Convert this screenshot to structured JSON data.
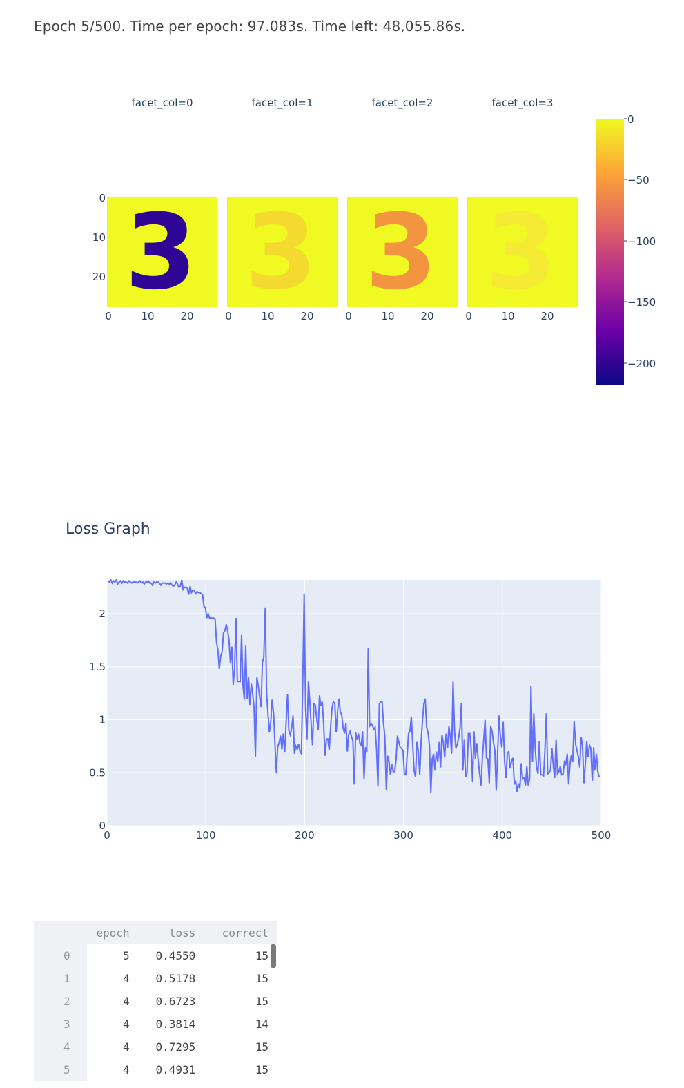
{
  "status_text": "Epoch 5/500. Time per epoch: 97.083s. Time left: 48,055.86s.",
  "facet_chart": {
    "facets": [
      {
        "title": "facet_col=0",
        "digit": "3",
        "color": "#2e0595",
        "opacity": 1.0,
        "style": "solid"
      },
      {
        "title": "facet_col=1",
        "digit": "3",
        "color": "#f7c13a",
        "opacity": 0.55,
        "style": "faint"
      },
      {
        "title": "facet_col=2",
        "digit": "3",
        "color": "#f39440",
        "opacity": 1.0,
        "style": "solid"
      },
      {
        "title": "facet_col=3",
        "digit": "3",
        "color": "#fbd84b",
        "opacity": 0.45,
        "style": "faint"
      }
    ],
    "y_ticks": [
      "0",
      "10",
      "20"
    ],
    "x_ticks": [
      "0",
      "10",
      "20"
    ],
    "background_color": "#f0f921",
    "colorbar": {
      "ticks": [
        "0",
        "−50",
        "−100",
        "−150",
        "−200"
      ],
      "colors": [
        "#0d0887",
        "#6a00a8",
        "#b12a90",
        "#e16462",
        "#fca636",
        "#f0f921"
      ]
    }
  },
  "loss_chart": {
    "title": "Loss Graph",
    "x_ticks": [
      "0",
      "100",
      "200",
      "300",
      "400",
      "500"
    ],
    "y_ticks": [
      "0",
      "0.5",
      "1",
      "1.5",
      "2"
    ],
    "line_color": "#636efa",
    "bg_color": "#e5ecf6"
  },
  "chart_data": {
    "type": "line",
    "title": "Loss Graph",
    "xlim": [
      0,
      500
    ],
    "ylim": [
      0,
      2.32
    ],
    "grid": true,
    "series": [
      {
        "values": [
          2.31,
          2.3,
          2.32,
          2.29,
          2.31,
          2.3,
          2.32,
          2.28,
          2.3,
          2.31,
          2.29,
          2.31,
          2.3,
          2.3,
          2.29,
          2.31,
          2.3,
          2.29,
          2.3,
          2.3,
          2.3,
          2.29,
          2.3,
          2.31,
          2.29,
          2.3,
          2.28,
          2.3,
          2.3,
          2.31,
          2.29,
          2.29,
          2.27,
          2.3,
          2.29,
          2.3,
          2.3,
          2.29,
          2.27,
          2.29,
          2.29,
          2.29,
          2.28,
          2.29,
          2.28,
          2.29,
          2.27,
          2.26,
          2.27,
          2.3,
          2.28,
          2.25,
          2.26,
          2.32,
          2.23,
          2.25,
          2.25,
          2.24,
          2.18,
          2.26,
          2.2,
          2.22,
          2.22,
          2.19,
          2.21,
          2.2,
          2.2,
          2.19,
          2.18,
          2.07,
          2.06,
          1.96,
          2.0,
          1.96,
          1.96,
          1.96,
          1.96,
          1.95,
          1.73,
          1.66,
          1.48,
          1.6,
          1.64,
          1.82,
          1.84,
          1.9,
          1.84,
          1.75,
          1.53,
          1.69,
          1.33,
          1.49,
          1.96,
          1.36,
          1.36,
          1.36,
          1.8,
          1.33,
          1.19,
          1.7,
          1.2,
          1.4,
          1.14,
          1.34,
          1.24,
          1.12,
          0.65,
          1.4,
          1.32,
          1.22,
          1.12,
          1.54,
          1.59,
          2.06,
          1.25,
          1.05,
          0.88,
          0.98,
          1.19,
          1.06,
          0.77,
          0.5,
          0.75,
          0.78,
          0.85,
          0.72,
          0.87,
          0.69,
          0.97,
          1.24,
          0.9,
          0.86,
          0.92,
          1.04,
          0.68,
          0.75,
          0.72,
          0.77,
          0.7,
          0.68,
          1.38,
          2.19,
          1.1,
          0.81,
          1.36,
          1.18,
          0.96,
          0.76,
          1.15,
          1.14,
          1.01,
          0.9,
          1.23,
          1.13,
          1.17,
          0.96,
          0.66,
          0.82,
          0.82,
          0.71,
          0.93,
          1.11,
          1.17,
          1.15,
          0.88,
          1.08,
          1.2,
          1.07,
          1.05,
          0.92,
          0.87,
          0.97,
          0.7,
          0.86,
          0.89,
          0.84,
          0.8,
          0.39,
          0.88,
          0.81,
          0.87,
          0.78,
          0.76,
          0.89,
          0.44,
          0.74,
          0.69,
          1.68,
          0.94,
          0.96,
          0.95,
          0.91,
          0.93,
          0.72,
          0.37,
          1.15,
          1.17,
          1.17,
          0.97,
          0.84,
          0.34,
          0.66,
          0.6,
          0.48,
          0.58,
          0.51,
          0.51,
          0.62,
          0.85,
          0.79,
          0.74,
          0.73,
          0.71,
          0.48,
          0.48,
          0.66,
          0.87,
          0.89,
          1.03,
          0.76,
          0.52,
          0.46,
          0.79,
          0.71,
          0.48,
          0.79,
          0.99,
          1.15,
          1.2,
          0.93,
          0.88,
          0.76,
          0.31,
          0.63,
          0.68,
          0.52,
          0.7,
          0.6,
          0.79,
          0.55,
          0.86,
          0.78,
          0.65,
          0.87,
          0.73,
          0.94,
          0.84,
          0.68,
          1.36,
          0.9,
          0.73,
          0.77,
          0.83,
          0.92,
          1.16,
          0.52,
          0.81,
          0.46,
          0.5,
          0.87,
          0.87,
          0.73,
          0.41,
          0.89,
          0.63,
          0.78,
          0.63,
          0.5,
          0.38,
          0.63,
          0.81,
          1.0,
          0.64,
          0.63,
          0.4,
          0.94,
          0.89,
          0.79,
          0.71,
          0.33,
          0.7,
          1.04,
          0.84,
          0.74,
          0.98,
          0.61,
          0.45,
          0.69,
          0.7,
          0.54,
          0.61,
          0.64,
          0.39,
          0.42,
          0.32,
          0.4,
          0.35,
          0.59,
          0.44,
          0.45,
          0.38,
          0.56,
          0.38,
          0.44,
          1.32,
          0.6,
          1.06,
          0.73,
          0.55,
          0.49,
          0.8,
          0.48,
          0.48,
          0.47,
          0.72,
          1.06,
          0.49,
          0.5,
          0.53,
          0.73,
          0.57,
          0.45,
          0.81,
          0.49,
          0.51,
          0.56,
          0.48,
          0.48,
          0.6,
          0.58,
          0.68,
          0.39,
          0.58,
          0.67,
          0.6,
          0.99,
          0.77,
          0.71,
          0.65,
          0.55,
          0.84,
          0.75,
          0.4,
          0.58,
          0.8,
          0.65,
          0.76,
          0.73,
          0.42,
          0.74,
          0.52,
          0.68,
          0.51,
          0.46
        ]
      }
    ]
  },
  "table": {
    "columns": [
      "epoch",
      "loss",
      "correct"
    ],
    "rows": [
      {
        "index": "0",
        "epoch": "5",
        "loss": "0.4550",
        "correct": "15"
      },
      {
        "index": "1",
        "epoch": "4",
        "loss": "0.5178",
        "correct": "15"
      },
      {
        "index": "2",
        "epoch": "4",
        "loss": "0.6723",
        "correct": "15"
      },
      {
        "index": "3",
        "epoch": "4",
        "loss": "0.3814",
        "correct": "14"
      },
      {
        "index": "4",
        "epoch": "4",
        "loss": "0.7295",
        "correct": "15"
      },
      {
        "index": "5",
        "epoch": "4",
        "loss": "0.4931",
        "correct": "15"
      }
    ]
  }
}
